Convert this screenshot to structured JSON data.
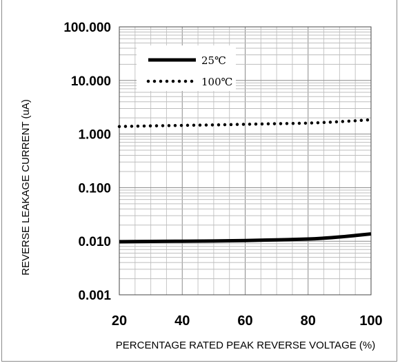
{
  "chart_data": {
    "type": "line",
    "title": "",
    "xlabel": "PERCENTAGE RATED PEAK REVERSE VOLTAGE (%)",
    "ylabel": "REVERSE LEAKAGE CURRENT (uA)",
    "xlim": [
      20,
      100
    ],
    "ylim": [
      0.001,
      100
    ],
    "yscale": "log",
    "grid": true,
    "x_ticks": [
      "20",
      "40",
      "60",
      "80",
      "100"
    ],
    "y_ticks": [
      "100.000",
      "10.000",
      "1.000",
      "0.100",
      "0.010",
      "0.001"
    ],
    "legend_position": "top-left",
    "series": [
      {
        "name": "25℃",
        "style": "solid",
        "color": "#000000",
        "x": [
          20,
          30,
          40,
          50,
          60,
          70,
          80,
          85,
          90,
          95,
          100
        ],
        "y": [
          0.0098,
          0.0099,
          0.01,
          0.0101,
          0.0103,
          0.0106,
          0.011,
          0.0114,
          0.012,
          0.0128,
          0.0137
        ]
      },
      {
        "name": "100℃",
        "style": "dotted",
        "color": "#000000",
        "x": [
          20,
          30,
          40,
          50,
          60,
          70,
          80,
          90,
          100
        ],
        "y": [
          1.38,
          1.42,
          1.45,
          1.48,
          1.52,
          1.56,
          1.6,
          1.7,
          1.85
        ]
      }
    ]
  }
}
